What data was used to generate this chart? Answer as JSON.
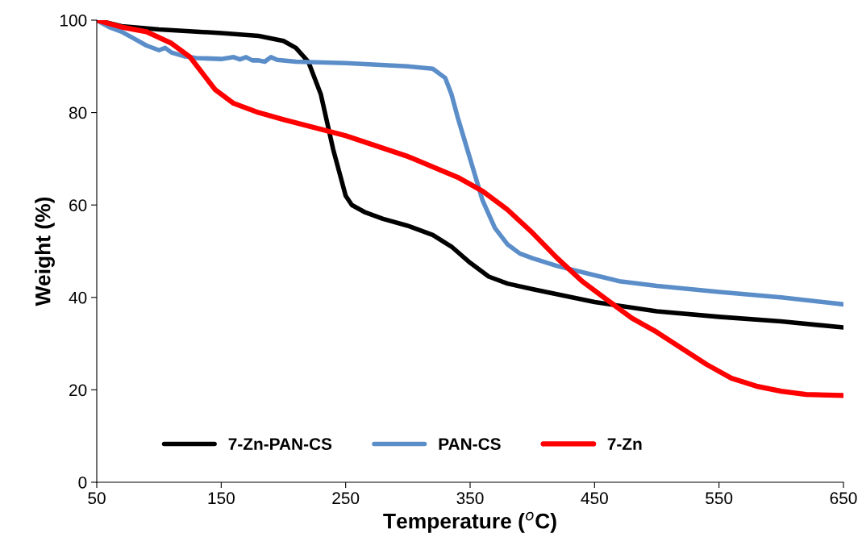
{
  "chart_data": {
    "type": "line",
    "xlabel": "Temperature ($^{o}$C)",
    "ylabel": "Weight (%)",
    "xlim": [
      50,
      650
    ],
    "xticks": [
      50,
      150,
      250,
      350,
      450,
      550,
      650
    ],
    "ylim": [
      0,
      100
    ],
    "yticks": [
      0,
      20,
      40,
      60,
      80,
      100
    ],
    "grid": false,
    "legend": "bottom left",
    "marker": "none",
    "line_style": "solid",
    "series": [
      {
        "name": "7-Zn-PAN-CS",
        "color": "#000000",
        "x": [
          50,
          70,
          100,
          150,
          180,
          200,
          210,
          220,
          230,
          240,
          245,
          250,
          255,
          265,
          280,
          300,
          320,
          335,
          350,
          365,
          380,
          400,
          450,
          500,
          550,
          600,
          650
        ],
        "values": [
          100,
          98.7,
          98,
          97.2,
          96.6,
          95.5,
          94,
          91,
          84,
          72,
          67,
          62,
          60,
          58.5,
          57,
          55.5,
          53.5,
          51,
          47.5,
          44.5,
          43,
          41.8,
          39,
          37,
          35.8,
          34.8,
          33.5
        ]
      },
      {
        "name": "PAN-CS",
        "color": "#5b8ec9",
        "x": [
          50,
          60,
          70,
          80,
          90,
          100,
          105,
          110,
          120,
          130,
          150,
          160,
          165,
          170,
          175,
          180,
          185,
          190,
          195,
          210,
          250,
          300,
          320,
          330,
          335,
          340,
          350,
          360,
          370,
          380,
          390,
          400,
          420,
          450,
          470,
          500,
          550,
          600,
          650
        ],
        "values": [
          100,
          98.5,
          97.5,
          96,
          94.5,
          93.5,
          94,
          93,
          92.2,
          91.8,
          91.6,
          92,
          91.5,
          92,
          91.3,
          91.3,
          91,
          92,
          91.4,
          91,
          90.7,
          90,
          89.5,
          87.5,
          84,
          79,
          70,
          61,
          55,
          51.5,
          49.5,
          48.5,
          46.8,
          44.8,
          43.5,
          42.5,
          41.2,
          40,
          38.5
        ]
      },
      {
        "name": "7-Zn",
        "color": "#ff0000",
        "x": [
          50,
          70,
          90,
          110,
          125,
          135,
          145,
          160,
          180,
          200,
          250,
          300,
          340,
          360,
          380,
          400,
          420,
          440,
          460,
          480,
          500,
          520,
          540,
          560,
          580,
          600,
          620,
          650
        ],
        "values": [
          100,
          98.5,
          97.5,
          95,
          92,
          88.5,
          85,
          82,
          80,
          78.5,
          75,
          70.5,
          66,
          63,
          59,
          54,
          48.5,
          43.5,
          39.5,
          35.5,
          32.5,
          29,
          25.5,
          22.5,
          20.8,
          19.7,
          19,
          18.8
        ]
      }
    ]
  }
}
